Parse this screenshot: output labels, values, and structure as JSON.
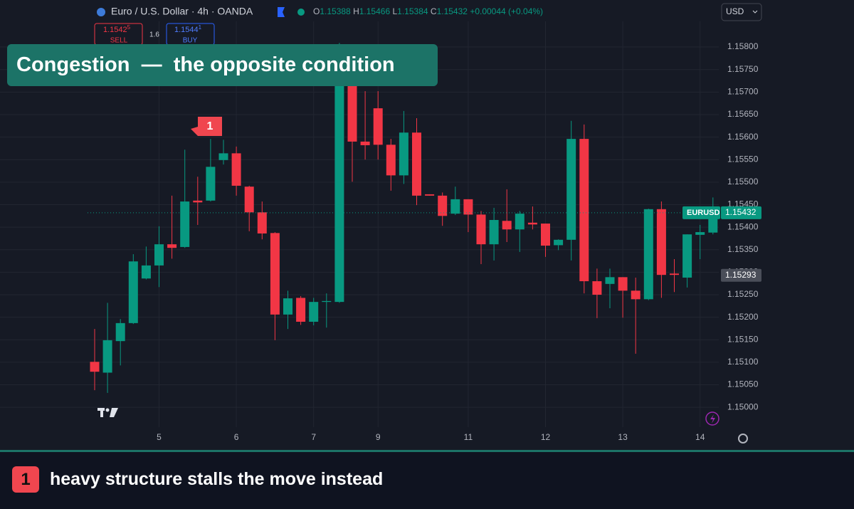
{
  "chart_data": {
    "type": "candlestick",
    "symbol_title": "Euro / U.S. Dollar · 4h · OANDA",
    "ohlc_header": {
      "o_label": "O",
      "o": 1.15388,
      "h_label": "H",
      "h": 1.15466,
      "l_label": "L",
      "l": 1.15384,
      "c_label": "C",
      "c": 1.15432,
      "change": "+0.00044 (+0.04%)"
    },
    "currency": "USD",
    "categories": [
      null,
      null,
      null,
      null,
      null,
      "5",
      null,
      null,
      null,
      null,
      null,
      "6",
      null,
      null,
      null,
      null,
      null,
      "7",
      null,
      null,
      null,
      null,
      "9",
      null,
      null,
      null,
      null,
      null,
      null,
      "11",
      null,
      null,
      null,
      null,
      null,
      "12",
      null,
      null,
      null,
      null,
      null,
      "13",
      null,
      null,
      null,
      null,
      null,
      "14",
      null
    ],
    "open": [
      1.15101,
      1.15077,
      1.15147,
      1.15187,
      1.15286,
      1.15315,
      1.15362,
      1.15356,
      1.15459,
      1.15459,
      1.15549,
      1.15564,
      1.1549,
      1.15433,
      1.15387,
      1.15206,
      1.15243,
      1.1519,
      1.15234,
      1.15234,
      1.15715,
      1.1559,
      1.15664,
      1.15583,
      1.15515,
      1.1561,
      1.15473,
      1.1547,
      1.1543,
      1.15462,
      1.15428,
      1.15362,
      1.15414,
      1.15395,
      1.1541,
      1.15408,
      1.1536,
      1.15372,
      1.15596,
      1.1528,
      1.15274,
      1.15289,
      1.15259,
      1.1524,
      1.1544,
      1.15297,
      1.15288,
      1.15383,
      1.15388
    ],
    "high": [
      1.15174,
      1.15232,
      1.15196,
      1.1534,
      1.15357,
      1.15402,
      1.1547,
      1.15572,
      1.15512,
      1.15596,
      1.15594,
      1.15579,
      1.15492,
      1.15457,
      1.15389,
      1.15259,
      1.15247,
      1.15243,
      1.15253,
      1.15809,
      1.15746,
      1.15702,
      1.15702,
      1.15596,
      1.15658,
      1.15642,
      1.15473,
      1.15477,
      1.1549,
      1.15462,
      1.15436,
      1.15443,
      1.15484,
      1.15436,
      1.15446,
      1.15408,
      1.15373,
      1.15636,
      1.15628,
      1.15308,
      1.15308,
      1.15289,
      1.15288,
      1.15441,
      1.15457,
      1.15329,
      1.15384,
      1.15405,
      1.15466
    ],
    "low": [
      1.15038,
      1.15032,
      1.15093,
      1.15185,
      1.15284,
      1.15267,
      1.1533,
      1.15354,
      1.15405,
      1.15457,
      1.15539,
      1.1547,
      1.15391,
      1.15373,
      1.15149,
      1.15174,
      1.15183,
      1.15182,
      1.15177,
      1.15232,
      1.15501,
      1.1555,
      1.1555,
      1.15481,
      1.15496,
      1.15449,
      1.1547,
      1.15403,
      1.15427,
      1.15389,
      1.15318,
      1.15326,
      1.15367,
      1.15345,
      1.15395,
      1.15334,
      1.15349,
      1.15326,
      1.15253,
      1.15198,
      1.1522,
      1.15199,
      1.15119,
      1.15238,
      1.15243,
      1.15256,
      1.15266,
      1.15329,
      1.15384
    ],
    "close": [
      1.15079,
      1.15149,
      1.15187,
      1.15324,
      1.15315,
      1.15362,
      1.15354,
      1.15457,
      1.15455,
      1.15534,
      1.15564,
      1.15492,
      1.15433,
      1.15386,
      1.15206,
      1.15242,
      1.1519,
      1.15234,
      1.15236,
      1.15715,
      1.1559,
      1.15582,
      1.15583,
      1.15515,
      1.1561,
      1.1547,
      1.1547,
      1.15425,
      1.15462,
      1.15428,
      1.15362,
      1.15416,
      1.15395,
      1.1543,
      1.15406,
      1.15359,
      1.15372,
      1.15596,
      1.1528,
      1.1525,
      1.15289,
      1.15259,
      1.1524,
      1.1544,
      1.15294,
      1.15294,
      1.15384,
      1.15389,
      1.15432
    ],
    "up_color": "#089981",
    "down_color": "#f23645",
    "ylim": [
      1.14956,
      1.15857
    ],
    "yticks": [
      {
        "value": 1.15,
        "label": "1.15000"
      },
      {
        "value": 1.1505,
        "label": "1.15050"
      },
      {
        "value": 1.151,
        "label": "1.15100"
      },
      {
        "value": 1.1515,
        "label": "1.15150"
      },
      {
        "value": 1.152,
        "label": "1.15200"
      },
      {
        "value": 1.1525,
        "label": "1.15250"
      },
      {
        "value": 1.153,
        "label": "1.15300"
      },
      {
        "value": 1.1535,
        "label": "1.15350"
      },
      {
        "value": 1.154,
        "label": "1.15400"
      },
      {
        "value": 1.1545,
        "label": "1.15450"
      },
      {
        "value": 1.155,
        "label": "1.15500"
      },
      {
        "value": 1.1555,
        "label": "1.15550"
      },
      {
        "value": 1.156,
        "label": "1.15600"
      },
      {
        "value": 1.1565,
        "label": "1.15650"
      },
      {
        "value": 1.157,
        "label": "1.15700"
      },
      {
        "value": 1.1575,
        "label": "1.15750"
      },
      {
        "value": 1.158,
        "label": "1.15800"
      }
    ],
    "grid": true,
    "last_price": {
      "name": "EURUSD",
      "value": 1.15432
    },
    "price_marker": 1.15293,
    "annotation": "1"
  },
  "trade_panel": {
    "sell_price": "1.1542",
    "sell_super": "5",
    "sell": "SELL",
    "spread": "1.6",
    "buy_price": "1.1544",
    "buy_super": "1",
    "buy": "BUY"
  },
  "banner": "Congestion  —  the opposite condition",
  "caption": {
    "badge": "1",
    "text": "heavy structure stalls the move instead"
  }
}
